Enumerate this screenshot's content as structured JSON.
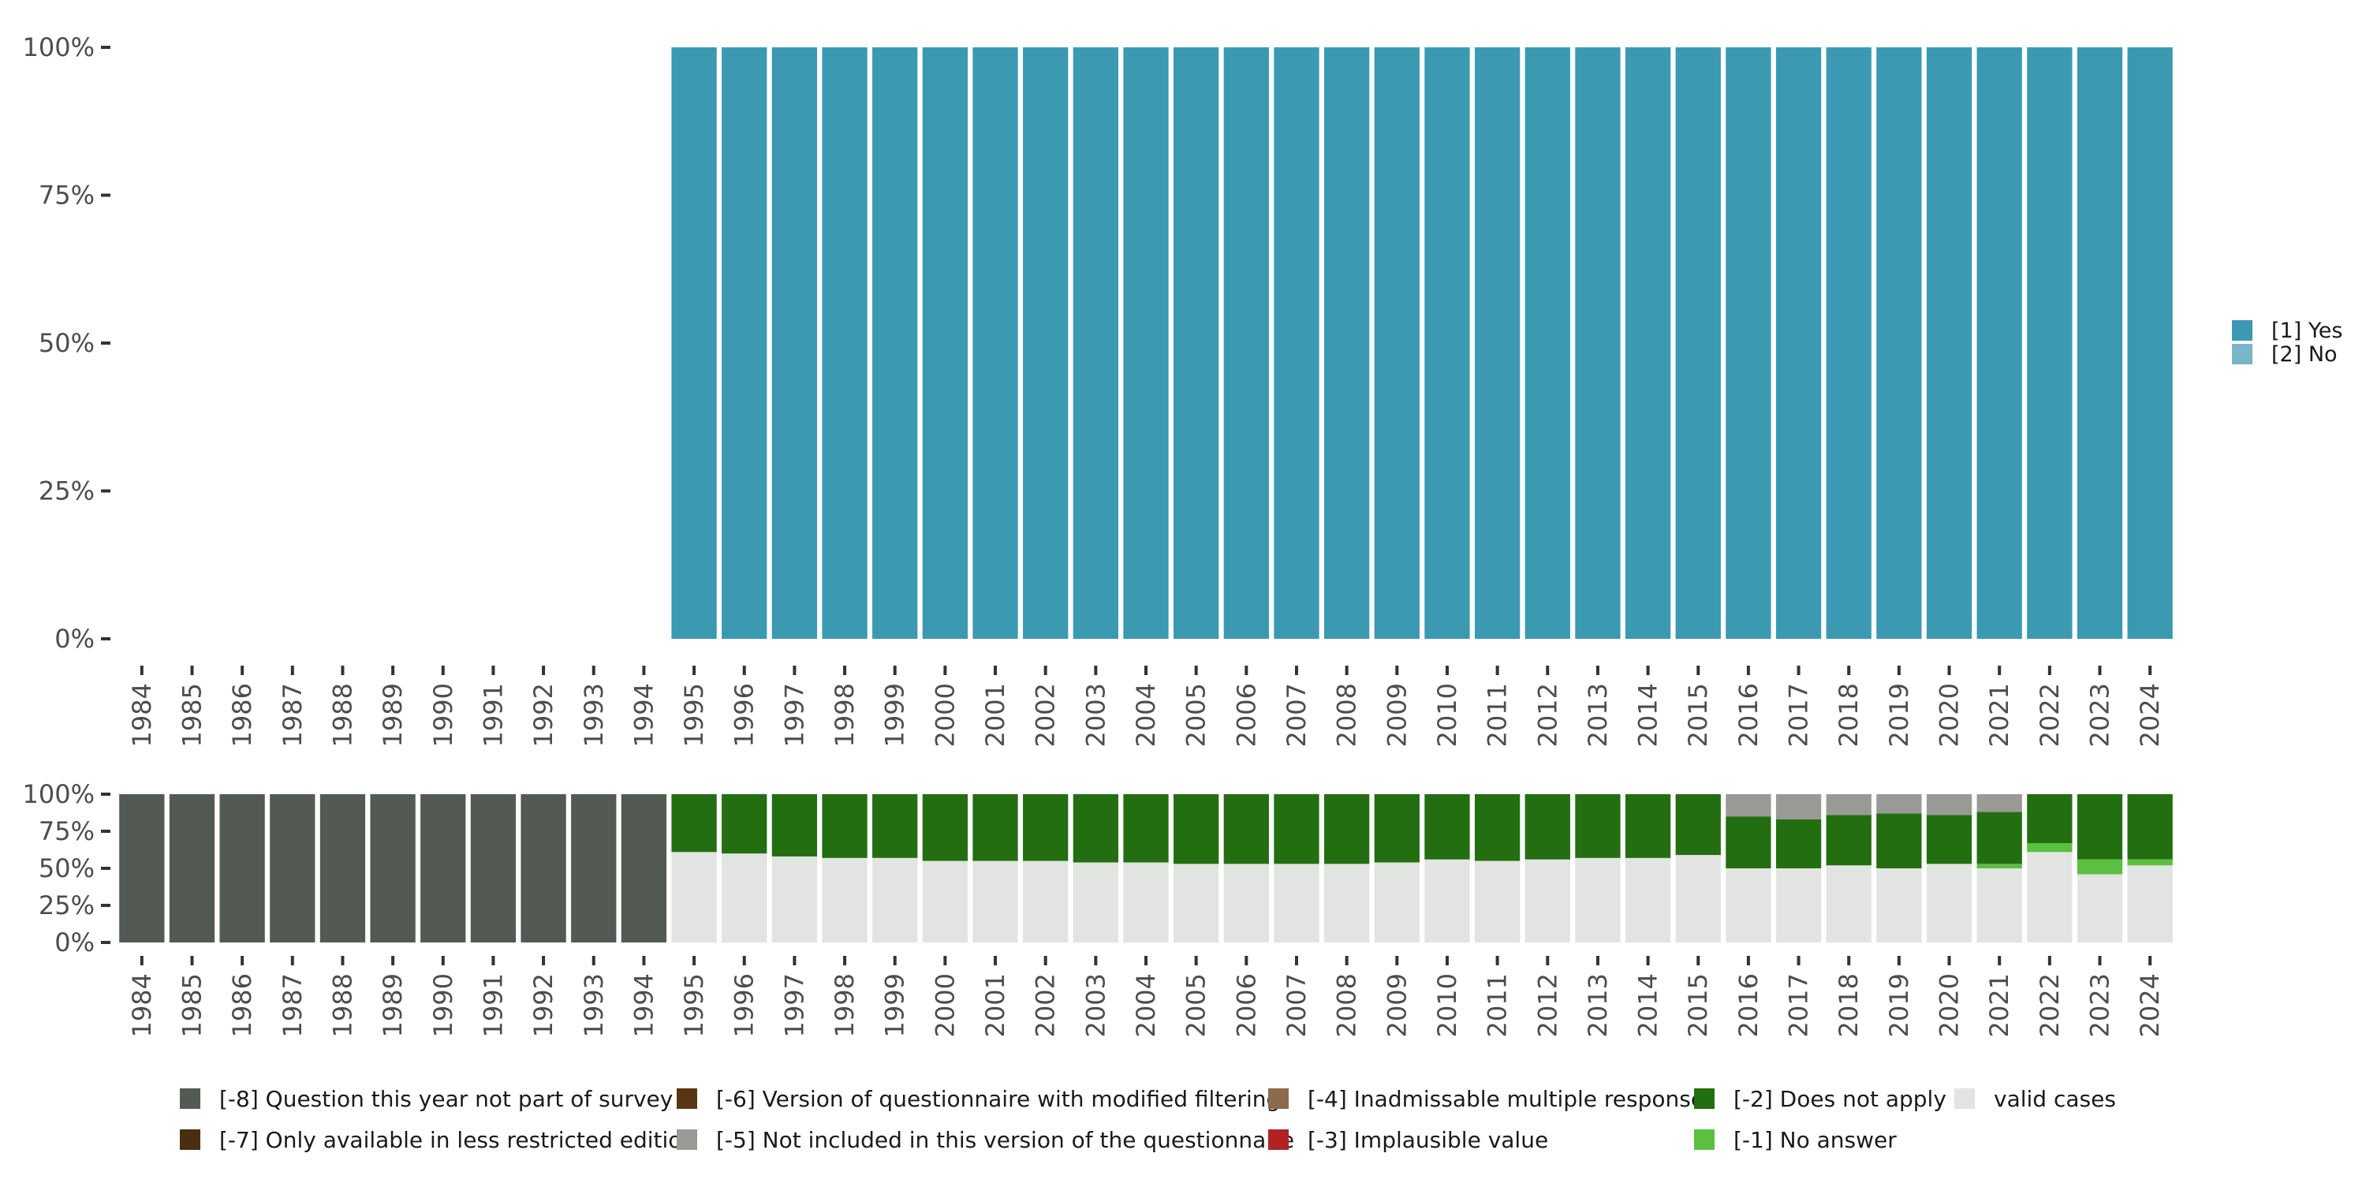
{
  "chart_data": [
    {
      "type": "bar",
      "stacked": true,
      "categories": [
        "1984",
        "1985",
        "1986",
        "1987",
        "1988",
        "1989",
        "1990",
        "1991",
        "1992",
        "1993",
        "1994",
        "1995",
        "1996",
        "1997",
        "1998",
        "1999",
        "2000",
        "2001",
        "2002",
        "2003",
        "2004",
        "2005",
        "2006",
        "2007",
        "2008",
        "2009",
        "2010",
        "2011",
        "2012",
        "2013",
        "2014",
        "2015",
        "2016",
        "2017",
        "2018",
        "2019",
        "2020",
        "2021",
        "2022",
        "2023",
        "2024"
      ],
      "ylim": [
        0,
        100
      ],
      "yticks": [
        0,
        25,
        50,
        75,
        100
      ],
      "ytick_labels": [
        "0%",
        "25%",
        "50%",
        "75%",
        "100%"
      ],
      "legend_position": "right",
      "series": [
        {
          "name": "[1] Yes",
          "color": "#3b99b2",
          "values": [
            0,
            0,
            0,
            0,
            0,
            0,
            0,
            0,
            0,
            0,
            0,
            100,
            100,
            100,
            100,
            100,
            100,
            100,
            100,
            100,
            100,
            100,
            100,
            100,
            100,
            100,
            100,
            100,
            100,
            100,
            100,
            100,
            100,
            100,
            100,
            100,
            100,
            100,
            100,
            100,
            100
          ]
        },
        {
          "name": "[2] No",
          "color": "#77b6c8",
          "values": [
            0,
            0,
            0,
            0,
            0,
            0,
            0,
            0,
            0,
            0,
            0,
            0,
            0,
            0,
            0,
            0,
            0,
            0,
            0,
            0,
            0,
            0,
            0,
            0,
            0,
            0,
            0,
            0,
            0,
            0,
            0,
            0,
            0,
            0,
            0,
            0,
            0,
            0,
            0,
            0,
            0
          ]
        }
      ]
    },
    {
      "type": "bar",
      "stacked": true,
      "categories": [
        "1984",
        "1985",
        "1986",
        "1987",
        "1988",
        "1989",
        "1990",
        "1991",
        "1992",
        "1993",
        "1994",
        "1995",
        "1996",
        "1997",
        "1998",
        "1999",
        "2000",
        "2001",
        "2002",
        "2003",
        "2004",
        "2005",
        "2006",
        "2007",
        "2008",
        "2009",
        "2010",
        "2011",
        "2012",
        "2013",
        "2014",
        "2015",
        "2016",
        "2017",
        "2018",
        "2019",
        "2020",
        "2021",
        "2022",
        "2023",
        "2024"
      ],
      "ylim": [
        0,
        100
      ],
      "yticks": [
        0,
        25,
        50,
        75,
        100
      ],
      "ytick_labels": [
        "0%",
        "25%",
        "50%",
        "75%",
        "100%"
      ],
      "legend_position": "bottom",
      "series": [
        {
          "name": "valid cases",
          "color": "#e1e4e0",
          "values": [
            0,
            0,
            0,
            0,
            0,
            0,
            0,
            0,
            0,
            0,
            0,
            61,
            60,
            58,
            57,
            57,
            55,
            55,
            55,
            54,
            54,
            53,
            53,
            53,
            53,
            54,
            56,
            55,
            56,
            57,
            57,
            59,
            50,
            50,
            52,
            50,
            53,
            50,
            61,
            46,
            52
          ]
        },
        {
          "name": "[-1] No answer",
          "color": "#5bbf3f",
          "values": [
            0,
            0,
            0,
            0,
            0,
            0,
            0,
            0,
            0,
            0,
            0,
            0,
            0,
            0,
            0,
            0,
            0,
            0,
            0,
            0,
            0,
            0,
            0,
            0,
            0,
            0,
            0,
            0,
            0,
            0,
            0,
            0,
            0,
            0,
            0,
            0,
            0,
            3,
            6,
            10,
            4
          ]
        },
        {
          "name": "[-2] Does not apply",
          "color": "#236e11",
          "values": [
            0,
            0,
            0,
            0,
            0,
            0,
            0,
            0,
            0,
            0,
            0,
            39,
            40,
            42,
            43,
            43,
            45,
            45,
            45,
            46,
            46,
            47,
            47,
            47,
            47,
            46,
            44,
            45,
            44,
            43,
            43,
            41,
            35,
            33,
            34,
            37,
            33,
            35,
            33,
            44,
            44
          ]
        },
        {
          "name": "[-3] Implausible value",
          "color": "#b22222",
          "values": [
            0,
            0,
            0,
            0,
            0,
            0,
            0,
            0,
            0,
            0,
            0,
            0,
            0,
            0,
            0,
            0,
            0,
            0,
            0,
            0,
            0,
            0,
            0,
            0,
            0,
            0,
            0,
            0,
            0,
            0,
            0,
            0,
            0,
            0,
            0,
            0,
            0,
            0,
            0,
            0,
            0
          ]
        },
        {
          "name": "[-4] Inadmissable multiple response",
          "color": "#8c6b4a",
          "values": [
            0,
            0,
            0,
            0,
            0,
            0,
            0,
            0,
            0,
            0,
            0,
            0,
            0,
            0,
            0,
            0,
            0,
            0,
            0,
            0,
            0,
            0,
            0,
            0,
            0,
            0,
            0,
            0,
            0,
            0,
            0,
            0,
            0,
            0,
            0,
            0,
            0,
            0,
            0,
            0,
            0
          ]
        },
        {
          "name": "[-5] Not included in this version of the questionnaire",
          "color": "#999a96",
          "values": [
            0,
            0,
            0,
            0,
            0,
            0,
            0,
            0,
            0,
            0,
            0,
            0,
            0,
            0,
            0,
            0,
            0,
            0,
            0,
            0,
            0,
            0,
            0,
            0,
            0,
            0,
            0,
            0,
            0,
            0,
            0,
            0,
            15,
            17,
            14,
            13,
            14,
            12,
            0,
            0,
            0
          ]
        },
        {
          "name": "[-6] Version of questionnaire with modified filtering",
          "color": "#5a3514",
          "values": [
            0,
            0,
            0,
            0,
            0,
            0,
            0,
            0,
            0,
            0,
            0,
            0,
            0,
            0,
            0,
            0,
            0,
            0,
            0,
            0,
            0,
            0,
            0,
            0,
            0,
            0,
            0,
            0,
            0,
            0,
            0,
            0,
            0,
            0,
            0,
            0,
            0,
            0,
            0,
            0,
            0
          ]
        },
        {
          "name": "[-7] Only available in less restricted edition",
          "color": "#4a2e12",
          "values": [
            0,
            0,
            0,
            0,
            0,
            0,
            0,
            0,
            0,
            0,
            0,
            0,
            0,
            0,
            0,
            0,
            0,
            0,
            0,
            0,
            0,
            0,
            0,
            0,
            0,
            0,
            0,
            0,
            0,
            0,
            0,
            0,
            0,
            0,
            0,
            0,
            0,
            0,
            0,
            0,
            0
          ]
        },
        {
          "name": "[-8] Question this year not part of survey",
          "color": "#535a53",
          "values": [
            100,
            100,
            100,
            100,
            100,
            100,
            100,
            100,
            100,
            100,
            100,
            0,
            0,
            0,
            0,
            0,
            0,
            0,
            0,
            0,
            0,
            0,
            0,
            0,
            0,
            0,
            0,
            0,
            0,
            0,
            0,
            0,
            0,
            0,
            0,
            0,
            0,
            0,
            0,
            0,
            0
          ]
        }
      ]
    }
  ]
}
